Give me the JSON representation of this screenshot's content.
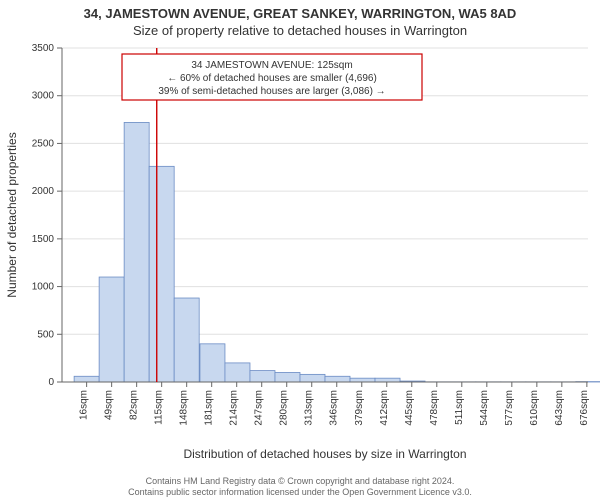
{
  "header": {
    "address": "34, JAMESTOWN AVENUE, GREAT SANKEY, WARRINGTON, WA5 8AD",
    "subtitle": "Size of property relative to detached houses in Warrington"
  },
  "annotation_box": {
    "line1": "34 JAMESTOWN AVENUE: 125sqm",
    "line2": "← 60% of detached houses are smaller (4,696)",
    "line3": "39% of semi-detached houses are larger (3,086) →",
    "border_color": "#cc0000",
    "text_color": "#333333",
    "bg_color": "#ffffff",
    "fontsize": 10
  },
  "chart": {
    "type": "histogram",
    "xlabel": "Distribution of detached houses by size in Warrington",
    "ylabel": "Number of detached properties",
    "label_fontsize": 12,
    "tick_fontsize": 10,
    "background_color": "#ffffff",
    "grid_color": "#e0e0e0",
    "axis_color": "#666666",
    "bar_fill": "#c8d8ef",
    "bar_stroke": "#6b8cc4",
    "marker_line_color": "#cc0000",
    "marker_x": 125,
    "x_min": 0,
    "x_max": 694,
    "x_tick_start": 16,
    "x_tick_step": 33,
    "x_tick_count": 21,
    "x_tick_suffix": "sqm",
    "ylim": [
      0,
      3500
    ],
    "y_tick_step": 500,
    "bin_width": 33,
    "bins": [
      {
        "x": 16,
        "count": 60
      },
      {
        "x": 49,
        "count": 1100
      },
      {
        "x": 82,
        "count": 2720
      },
      {
        "x": 115,
        "count": 2260
      },
      {
        "x": 148,
        "count": 880
      },
      {
        "x": 182,
        "count": 400
      },
      {
        "x": 215,
        "count": 200
      },
      {
        "x": 248,
        "count": 120
      },
      {
        "x": 281,
        "count": 100
      },
      {
        "x": 314,
        "count": 80
      },
      {
        "x": 347,
        "count": 60
      },
      {
        "x": 380,
        "count": 40
      },
      {
        "x": 413,
        "count": 40
      },
      {
        "x": 446,
        "count": 10
      },
      {
        "x": 479,
        "count": 2
      },
      {
        "x": 513,
        "count": 2
      },
      {
        "x": 546,
        "count": 2
      },
      {
        "x": 579,
        "count": 2
      },
      {
        "x": 612,
        "count": 2
      },
      {
        "x": 645,
        "count": 2
      },
      {
        "x": 678,
        "count": 4
      }
    ]
  },
  "footer": {
    "line1": "Contains HM Land Registry data © Crown copyright and database right 2024.",
    "line2": "Contains public sector information licensed under the Open Government Licence v3.0."
  }
}
